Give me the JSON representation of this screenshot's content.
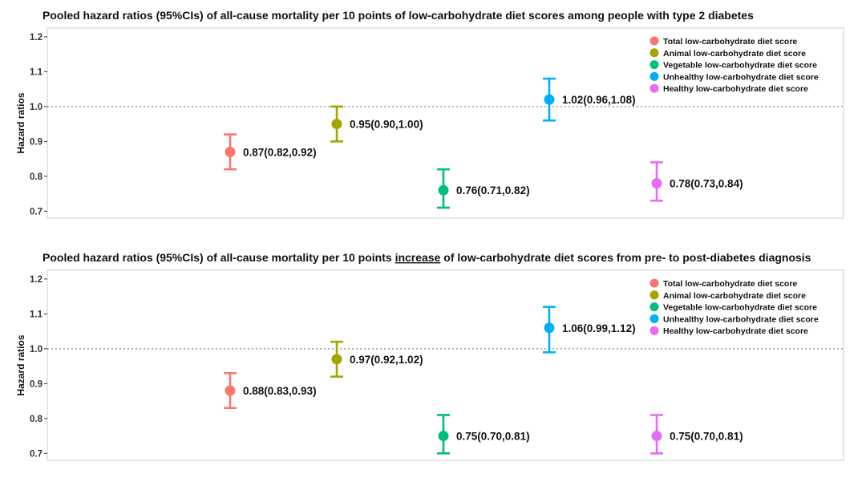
{
  "chart_data": [
    {
      "type": "scatter",
      "title_pre": "Pooled hazard ratios (95%CIs) of all-cause mortality per 10 points of low-carbohydrate diet scores among people with type 2 diabetes",
      "title_underlined": "",
      "title_post": "",
      "ylabel": "Hazard ratios",
      "ylim": [
        0.68,
        1.225
      ],
      "yticks": [
        "0.7",
        "0.8",
        "0.9",
        "1.0",
        "1.1",
        "1.2"
      ],
      "reference_line": 1.0,
      "grid": false,
      "legend_position": "top-right",
      "series": [
        {
          "name": "Total low-carbohydrate diet score",
          "color": "#F8766D",
          "hr": 0.87,
          "lo": 0.82,
          "hi": 0.92,
          "label": "0.87(0.82,0.92)"
        },
        {
          "name": "Animal low-carbohydrate diet score",
          "color": "#A3A500",
          "hr": 0.95,
          "lo": 0.9,
          "hi": 1.0,
          "label": "0.95(0.90,1.00)"
        },
        {
          "name": "Vegetable low-carbohydrate diet score",
          "color": "#00BF7D",
          "hr": 0.76,
          "lo": 0.71,
          "hi": 0.82,
          "label": "0.76(0.71,0.82)"
        },
        {
          "name": "Unhealthy low-carbohydrate diet score",
          "color": "#00B0F6",
          "hr": 1.02,
          "lo": 0.96,
          "hi": 1.08,
          "label": "1.02(0.96,1.08)"
        },
        {
          "name": "Healthy low-carbohydrate diet score",
          "color": "#E76BF3",
          "hr": 0.78,
          "lo": 0.73,
          "hi": 0.84,
          "label": "0.78(0.73,0.84)"
        }
      ]
    },
    {
      "type": "scatter",
      "title_pre": "Pooled hazard ratios (95%CIs) of all-cause mortality per 10 points ",
      "title_underlined": "increase",
      "title_post": " of low-carbohydrate diet scores from pre- to post-diabetes diagnosis",
      "ylabel": "Hazard ratios",
      "ylim": [
        0.68,
        1.225
      ],
      "yticks": [
        "0.7",
        "0.8",
        "0.9",
        "1.0",
        "1.1",
        "1.2"
      ],
      "reference_line": 1.0,
      "grid": false,
      "legend_position": "top-right",
      "series": [
        {
          "name": "Total low-carbohydrate diet score",
          "color": "#F8766D",
          "hr": 0.88,
          "lo": 0.83,
          "hi": 0.93,
          "label": "0.88(0.83,0.93)"
        },
        {
          "name": "Animal low-carbohydrate diet score",
          "color": "#A3A500",
          "hr": 0.97,
          "lo": 0.92,
          "hi": 1.02,
          "label": "0.97(0.92,1.02)"
        },
        {
          "name": "Vegetable low-carbohydrate diet score",
          "color": "#00BF7D",
          "hr": 0.75,
          "lo": 0.7,
          "hi": 0.81,
          "label": "0.75(0.70,0.81)"
        },
        {
          "name": "Unhealthy low-carbohydrate diet score",
          "color": "#00B0F6",
          "hr": 1.06,
          "lo": 0.99,
          "hi": 1.12,
          "label": "1.06(0.99,1.12)"
        },
        {
          "name": "Healthy low-carbohydrate diet score",
          "color": "#E76BF3",
          "hr": 0.75,
          "lo": 0.7,
          "hi": 0.81,
          "label": "0.75(0.70,0.81)"
        }
      ]
    }
  ]
}
